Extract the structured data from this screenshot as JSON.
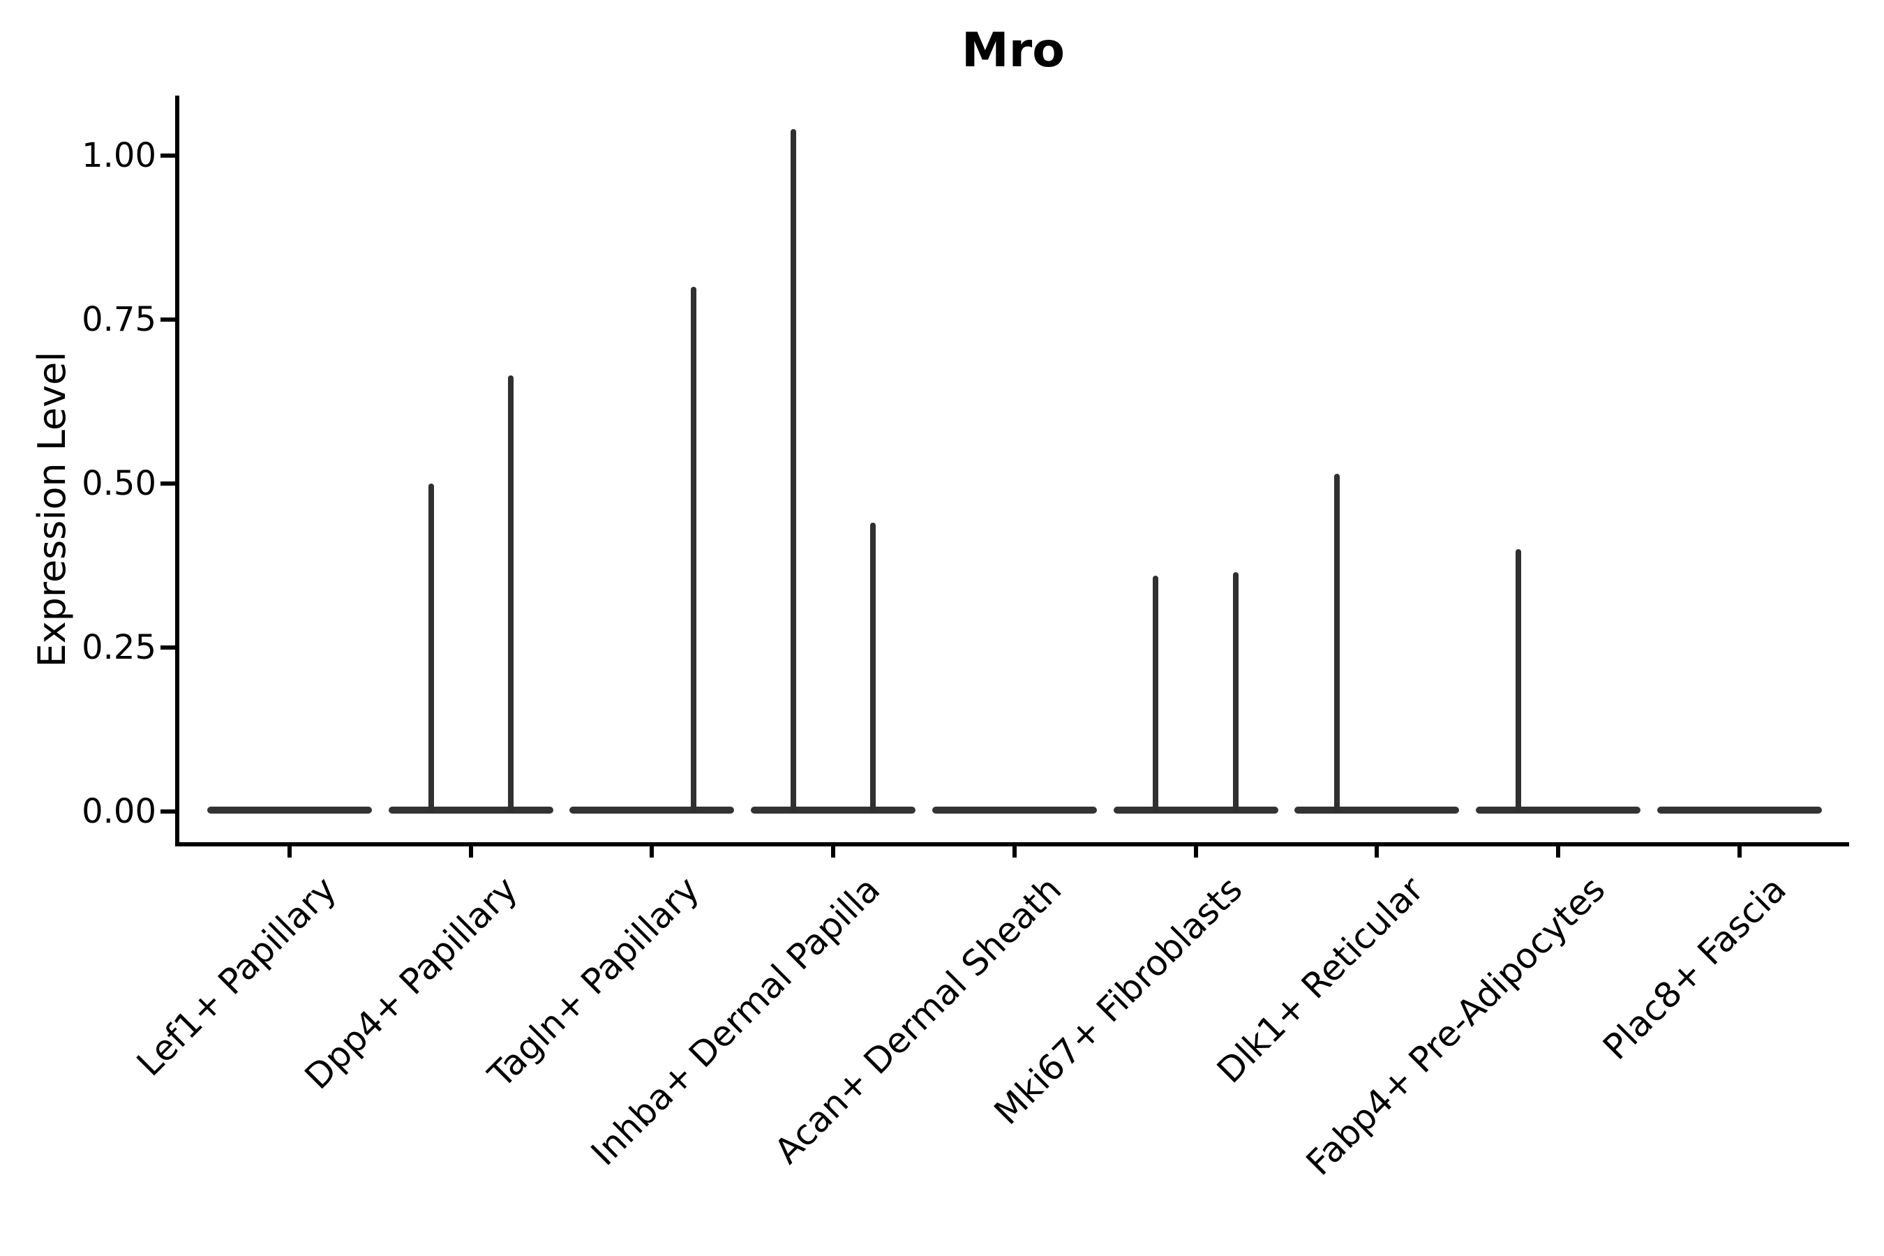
{
  "figure": {
    "title": "Mro",
    "background_color": "#ffffff",
    "text_color": "#000000",
    "violin_color": "#333333"
  },
  "chart_data": {
    "type": "violin",
    "title": "Mro",
    "xlabel": "",
    "ylabel": "Expression Level",
    "ylim": [
      0,
      1.09
    ],
    "grid": false,
    "legend": "none",
    "yticks": [
      0.0,
      0.25,
      0.5,
      0.75,
      1.0
    ],
    "ytick_labels": [
      "0.00",
      "0.25",
      "0.50",
      "0.75",
      "1.00"
    ],
    "categories": [
      "Lef1+ Papillary",
      "Dpp4+ Papillary",
      "Tagln+ Papillary",
      "Inhba+ Dermal Papilla",
      "Acan+ Dermal Sheath",
      "Mki67+ Fibroblasts",
      "Dlk1+ Reticular",
      "Fabp4+ Pre-Adipocytes",
      "Plac8+ Fascia"
    ],
    "series": [
      {
        "category": "Lef1+ Papillary",
        "baseline_value": 0.0,
        "spikes": []
      },
      {
        "category": "Dpp4+ Papillary",
        "baseline_value": 0.0,
        "spikes": [
          {
            "offset": -0.22,
            "max": 0.5
          },
          {
            "offset": 0.22,
            "max": 0.665
          }
        ]
      },
      {
        "category": "Tagln+ Papillary",
        "baseline_value": 0.0,
        "spikes": [
          {
            "offset": 0.23,
            "max": 0.8
          }
        ]
      },
      {
        "category": "Inhba+ Dermal Papilla",
        "baseline_value": 0.0,
        "spikes": [
          {
            "offset": -0.22,
            "max": 1.04
          },
          {
            "offset": 0.22,
            "max": 0.44
          }
        ]
      },
      {
        "category": "Acan+ Dermal Sheath",
        "baseline_value": 0.0,
        "spikes": []
      },
      {
        "category": "Mki67+ Fibroblasts",
        "baseline_value": 0.0,
        "spikes": [
          {
            "offset": -0.22,
            "max": 0.36
          },
          {
            "offset": 0.22,
            "max": 0.365
          }
        ]
      },
      {
        "category": "Dlk1+ Reticular",
        "baseline_value": 0.0,
        "spikes": [
          {
            "offset": -0.22,
            "max": 0.515
          }
        ]
      },
      {
        "category": "Fabp4+ Pre-Adipocytes",
        "baseline_value": 0.0,
        "spikes": [
          {
            "offset": -0.22,
            "max": 0.4
          }
        ]
      },
      {
        "category": "Plac8+ Fascia",
        "baseline_value": 0.0,
        "spikes": []
      }
    ],
    "layout_hints": {
      "xtick_label_rotation_deg": 45,
      "violin_half_width_fraction": 0.455,
      "spike_offset_fraction": 0.223
    }
  }
}
